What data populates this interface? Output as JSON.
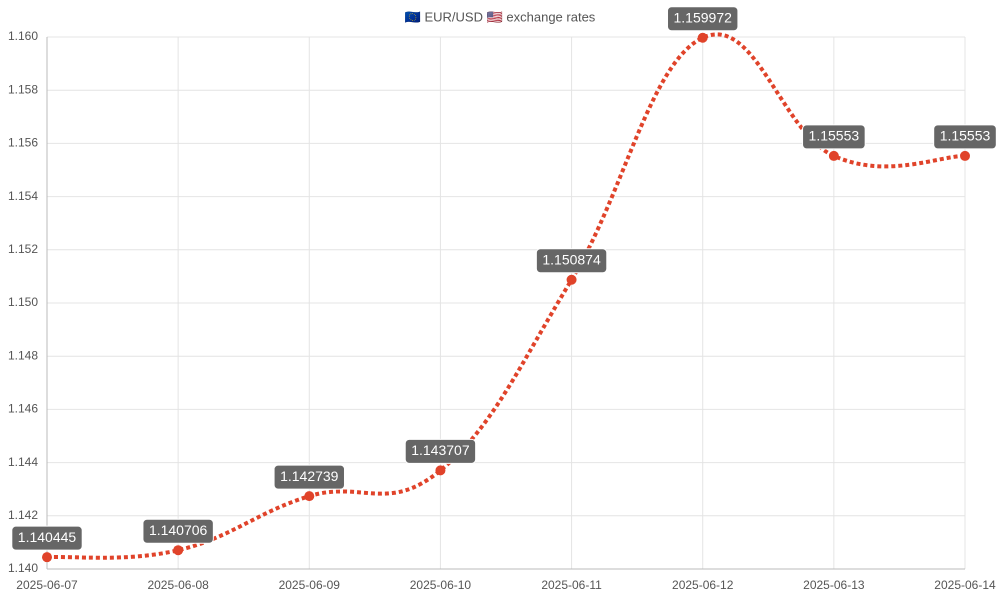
{
  "chart_data": {
    "type": "line",
    "title": "🇪🇺 EUR/USD 🇺🇸 exchange rates",
    "categories": [
      "2025-06-07",
      "2025-06-08",
      "2025-06-09",
      "2025-06-10",
      "2025-06-11",
      "2025-06-12",
      "2025-06-13",
      "2025-06-14"
    ],
    "series": [
      {
        "name": "EUR/USD",
        "color": "#e0432a",
        "values": [
          1.140445,
          1.140706,
          1.142739,
          1.143707,
          1.150874,
          1.159972,
          1.15553,
          1.15553
        ]
      }
    ],
    "ylim": [
      1.14,
      1.16
    ],
    "yticks": [
      {
        "value": 1.14,
        "label": "1.140"
      },
      1.142,
      1.144,
      1.146,
      1.148,
      {
        "value": 1.15,
        "label": "1.150"
      },
      1.152,
      1.154,
      1.156,
      1.158,
      {
        "value": 1.16,
        "label": "1.160"
      }
    ],
    "grid": true
  }
}
